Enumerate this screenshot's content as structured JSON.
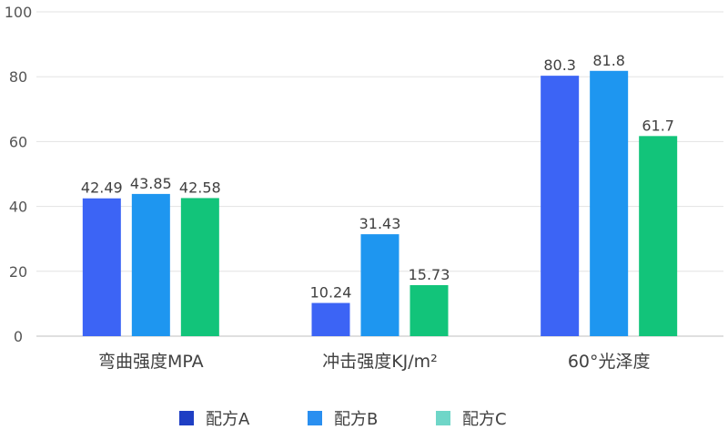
{
  "chart_data": {
    "type": "bar",
    "categories": [
      "弯曲强度MPA",
      "冲击强度KJ/m²",
      "60°光泽度"
    ],
    "series": [
      {
        "name": "配方A",
        "values": [
          42.49,
          10.24,
          80.3
        ],
        "value_labels": [
          "42.49",
          "10.24",
          "80.3"
        ],
        "bar_color": "#3c64f5",
        "legend_color": "#1f3fc4"
      },
      {
        "name": "配方B",
        "values": [
          43.85,
          31.43,
          81.8
        ],
        "value_labels": [
          "43.85",
          "31.43",
          "81.8"
        ],
        "bar_color": "#1e96f0",
        "legend_color": "#2a8ff0"
      },
      {
        "name": "配方C",
        "values": [
          42.58,
          15.73,
          61.7
        ],
        "value_labels": [
          "42.58",
          "15.73",
          "61.7"
        ],
        "bar_color": "#12c47a",
        "legend_color": "#6fd6c8"
      }
    ],
    "yticks": [
      "0",
      "20",
      "40",
      "60",
      "80",
      "100"
    ],
    "ylim": [
      0,
      100
    ],
    "grid": true,
    "legend_position": "bottom-center",
    "title": "",
    "xlabel": "",
    "ylabel": ""
  }
}
